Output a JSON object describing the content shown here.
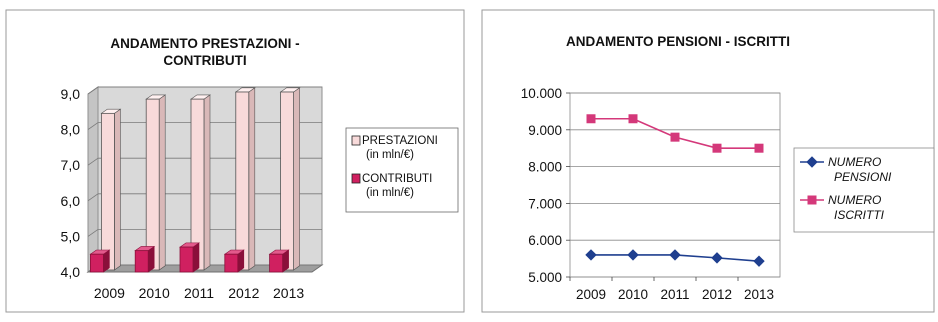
{
  "chart_data": [
    {
      "type": "bar",
      "title": "ANDAMENTO PRESTAZIONI -\nCONTRIBUTI",
      "categories": [
        "2009",
        "2010",
        "2011",
        "2012",
        "2013"
      ],
      "yticks": [
        "4,0",
        "5,0",
        "6,0",
        "7,0",
        "8,0",
        "9,0"
      ],
      "ylim": [
        4.0,
        9.0
      ],
      "three_d": true,
      "grid": true,
      "legend_position": "right",
      "series": [
        {
          "name": "PRESTAZIONI\n(in mln/€)",
          "values": [
            8.4,
            8.8,
            8.8,
            9.0,
            9.0
          ],
          "color": "#f8dada",
          "edge": "#555555"
        },
        {
          "name": "CONTRIBUTI\n(in mln/€)",
          "values": [
            4.5,
            4.6,
            4.7,
            4.5,
            4.5
          ],
          "color": "#d02060",
          "edge": "#8a0f3a"
        }
      ],
      "background": "#d9d9d9"
    },
    {
      "type": "line",
      "title": "ANDAMENTO PENSIONI - ISCRITTI",
      "categories": [
        "2009",
        "2010",
        "2011",
        "2012",
        "2013"
      ],
      "yticks": [
        "5.000",
        "6.000",
        "7.000",
        "8.000",
        "9.000",
        "10.000"
      ],
      "ylim": [
        5000,
        10000
      ],
      "grid": true,
      "legend_position": "right",
      "series": [
        {
          "name": "NUMERO\nPENSIONI",
          "values": [
            5600,
            5600,
            5600,
            5520,
            5430
          ],
          "color": "#1f3f8f",
          "marker": "diamond"
        },
        {
          "name": "NUMERO\nISCRITTI",
          "values": [
            9300,
            9300,
            8800,
            8500,
            8500
          ],
          "color": "#d4387a",
          "marker": "square"
        }
      ]
    }
  ]
}
